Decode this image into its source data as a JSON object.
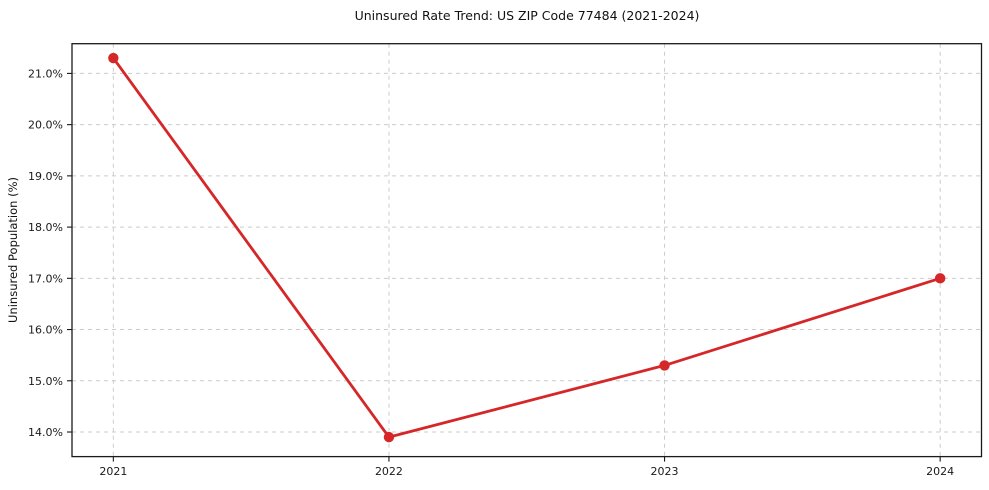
{
  "chart_data": {
    "type": "line",
    "title": "Uninsured Rate Trend: US ZIP Code 77484 (2021-2024)",
    "xlabel": "",
    "ylabel": "Uninsured Population (%)",
    "x": [
      2021,
      2022,
      2023,
      2024
    ],
    "x_tick_labels": [
      "2021",
      "2022",
      "2023",
      "2024"
    ],
    "values": [
      21.3,
      13.9,
      15.3,
      17.0
    ],
    "y_ticks": [
      14,
      15,
      16,
      17,
      18,
      19,
      20,
      21
    ],
    "y_tick_labels": [
      "14.0%",
      "15.0%",
      "16.0%",
      "17.0%",
      "18.0%",
      "19.0%",
      "20.0%",
      "21.0%"
    ],
    "xlim": [
      2020.85,
      2024.15
    ],
    "ylim": [
      13.52,
      21.58
    ],
    "grid": true,
    "grid_style": "dashed",
    "legend_position": "none",
    "line_color": "#d62728",
    "marker": "circle",
    "grid_color": "#cccccc",
    "spine_color": "#1a1a1a",
    "background_color": "#ffffff"
  }
}
